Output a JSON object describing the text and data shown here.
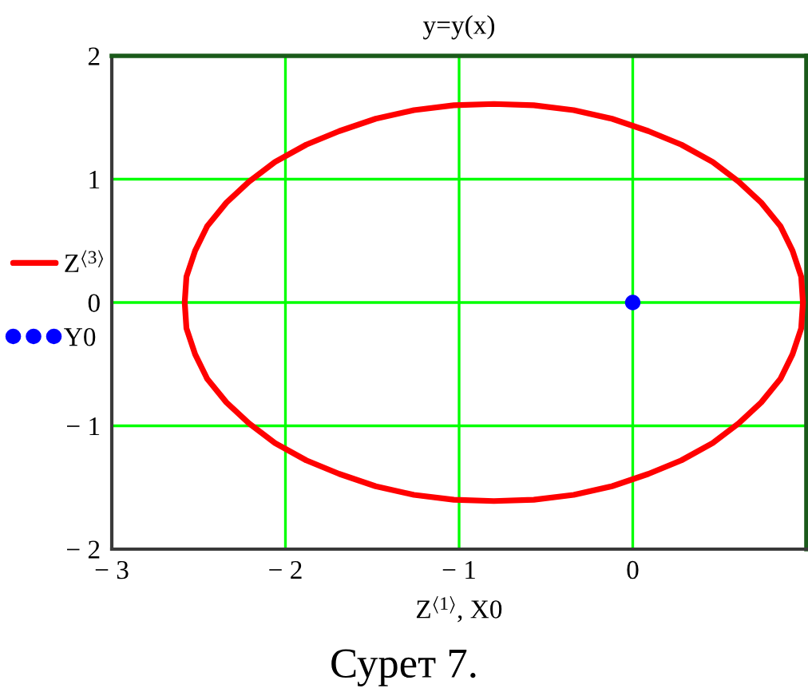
{
  "chart_data": {
    "type": "line",
    "title": "y=y(x)",
    "xlabel": "Z$^{⟨1⟩}$, X0",
    "annotations": [
      "Сурет 7."
    ],
    "series": [
      {
        "name": "Z$^{⟨3⟩}$",
        "color": "#ff0000",
        "x": [
          0.98,
          0.97,
          0.92,
          0.85,
          0.74,
          0.61,
          0.46,
          0.28,
          0.09,
          -0.12,
          -0.34,
          -0.57,
          -0.8,
          -1.03,
          -1.26,
          -1.48,
          -1.69,
          -1.88,
          -2.06,
          -2.21,
          -2.34,
          -2.45,
          -2.52,
          -2.57,
          -2.58,
          -2.57,
          -2.52,
          -2.45,
          -2.34,
          -2.21,
          -2.06,
          -1.88,
          -1.69,
          -1.48,
          -1.26,
          -1.03,
          -0.8,
          -0.57,
          -0.34,
          -0.12,
          0.09,
          0.28,
          0.46,
          0.61,
          0.74,
          0.85,
          0.92,
          0.97,
          0.98,
          0.97
        ],
        "values": [
          0,
          0.21,
          0.42,
          0.62,
          0.81,
          0.98,
          1.14,
          1.28,
          1.39,
          1.49,
          1.56,
          1.6,
          1.61,
          1.6,
          1.56,
          1.49,
          1.39,
          1.28,
          1.14,
          0.98,
          0.81,
          0.62,
          0.42,
          0.21,
          0,
          -0.21,
          -0.42,
          -0.62,
          -0.81,
          -0.98,
          -1.14,
          -1.28,
          -1.39,
          -1.49,
          -1.56,
          -1.6,
          -1.61,
          -1.6,
          -1.56,
          -1.49,
          -1.39,
          -1.28,
          -1.14,
          -0.98,
          -0.81,
          -0.62,
          -0.42,
          -0.21,
          0,
          0.21
        ]
      },
      {
        "name": "Y0",
        "type": "scatter",
        "color": "#0000ff",
        "marker": "circle",
        "x": [
          0
        ],
        "values": [
          0
        ]
      }
    ],
    "xlim": [
      -3,
      1
    ],
    "xticks": [
      {
        "value": -3,
        "label": "− 3"
      },
      {
        "value": -2,
        "label": "− 2"
      },
      {
        "value": -1,
        "label": "− 1"
      },
      0
    ],
    "ylim": [
      -2,
      2
    ],
    "yticks": [
      {
        "value": -2,
        "label": "− 2"
      },
      {
        "value": -1,
        "label": "− 1"
      },
      0,
      1,
      2
    ],
    "grid": true,
    "legend": "left"
  }
}
